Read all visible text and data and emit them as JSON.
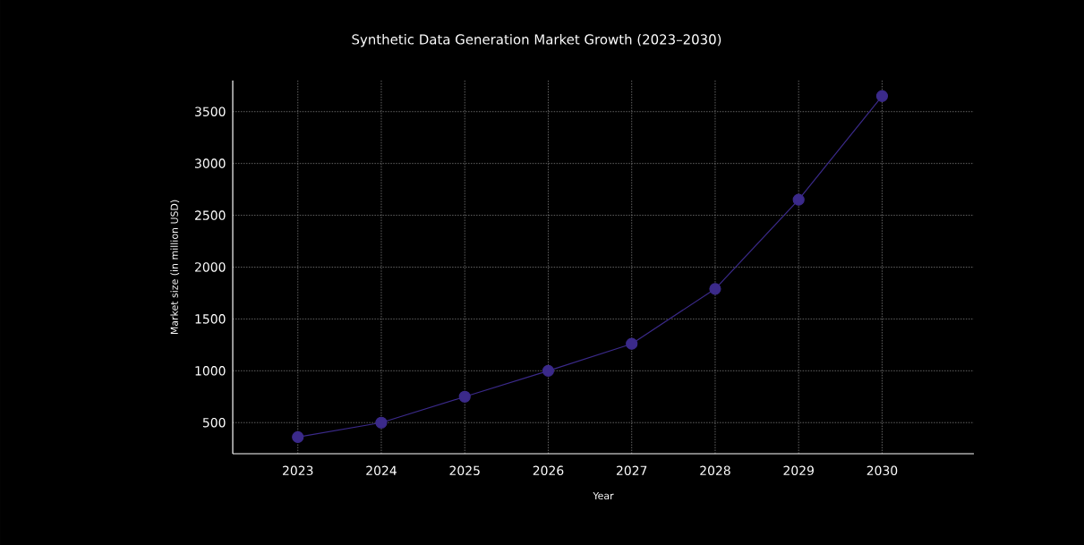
{
  "chart_data": {
    "type": "line",
    "title": "Synthetic Data Generation Market Growth (2023–2030)",
    "xlabel": "Year",
    "ylabel": "Market size (in million USD)",
    "categories": [
      "2023",
      "2024",
      "2025",
      "2026",
      "2027",
      "2028",
      "2029",
      "2030"
    ],
    "series": [
      {
        "color": "#3b2a8a",
        "values": [
          360,
          500,
          750,
          1000,
          1260,
          1790,
          2650,
          3650
        ]
      }
    ],
    "ylim": [
      200,
      3800
    ],
    "yticks": [
      500,
      1000,
      1500,
      2000,
      2500,
      3000,
      3500
    ],
    "grid": true,
    "marker": "circle",
    "line_style": "solid"
  }
}
